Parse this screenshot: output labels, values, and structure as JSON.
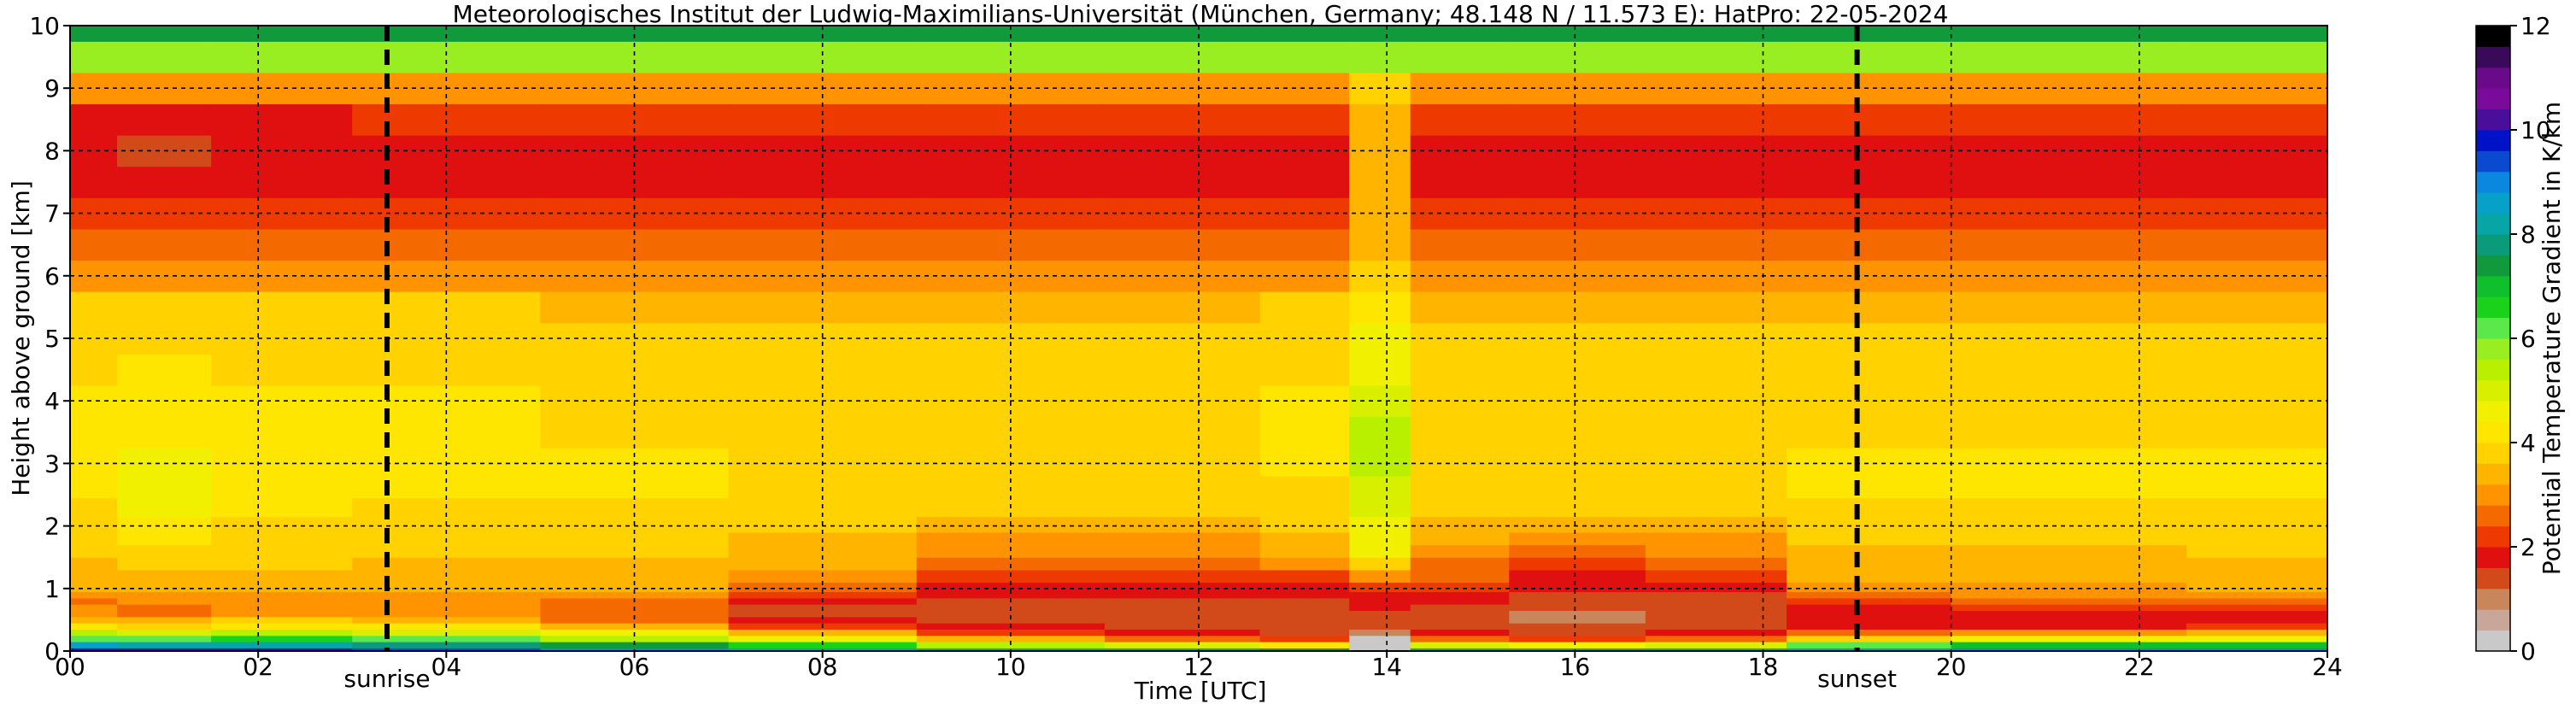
{
  "chart_data": {
    "type": "heatmap",
    "title": "Meteorologisches Institut der Ludwig-Maximilians-Universität (München, Germany; 48.148 N / 11.573 E):    HatPro: 22-05-2024",
    "xlabel": "Time [UTC]",
    "ylabel": "Height above ground [km]",
    "xlim": [
      0,
      24
    ],
    "ylim": [
      0,
      10
    ],
    "x_ticks": [
      "00",
      "02",
      "04",
      "06",
      "08",
      "10",
      "12",
      "14",
      "16",
      "18",
      "20",
      "22",
      "24"
    ],
    "y_ticks": [
      "0",
      "1",
      "2",
      "3",
      "4",
      "5",
      "6",
      "7",
      "8",
      "9",
      "10"
    ],
    "grid": true,
    "annotations": [
      {
        "label": "sunrise",
        "x": 3.37
      },
      {
        "label": "sunset",
        "x": 19.0
      }
    ],
    "colorbar": {
      "label": "Potential Temperature Gradient in K/km",
      "range": [
        0,
        12
      ],
      "ticks": [
        "0",
        "2",
        "4",
        "6",
        "8",
        "10",
        "12"
      ],
      "colors": [
        "#c9c9c9",
        "#c8a79a",
        "#c9865b",
        "#d24a1a",
        "#e01010",
        "#ee3a00",
        "#f46a00",
        "#ff9400",
        "#ffb400",
        "#ffd200",
        "#ffe600",
        "#f0f000",
        "#d8f000",
        "#b8f000",
        "#98ee20",
        "#5ae84a",
        "#19d219",
        "#0fbf2c",
        "#109a3c",
        "#0a9c7a",
        "#07a5a5",
        "#06a0c8",
        "#0a88e0",
        "#0a4ad0",
        "#0012c8",
        "#4a0f9a",
        "#7a0a9a",
        "#6a0a8a",
        "#3a0a5a",
        "#000000"
      ]
    },
    "height_km": [
      0,
      0.1,
      0.2,
      0.3,
      0.4,
      0.5,
      0.6,
      0.7,
      0.8,
      0.9,
      1.0,
      1.2,
      1.4,
      1.6,
      1.8,
      2.0,
      2.3,
      2.6,
      3.0,
      3.5,
      4.0,
      4.5,
      5.0,
      5.5,
      6.0,
      6.5,
      7.0,
      7.5,
      8.0,
      8.5,
      9.0,
      9.5,
      10.0
    ],
    "profiles": [
      {
        "time": 0.0,
        "values": [
          10.2,
          8.5,
          6.2,
          5.4,
          4.2,
          3.4,
          3.0,
          2.9,
          2.8,
          3.0,
          3.2,
          3.4,
          3.5,
          3.6,
          3.6,
          3.8,
          3.9,
          4.0,
          4.1,
          4.0,
          4.0,
          3.9,
          3.8,
          3.6,
          3.0,
          2.6,
          2.4,
          1.8,
          1.7,
          1.9,
          3.0,
          5.8,
          7.5
        ]
      },
      {
        "time": 1.0,
        "values": [
          10.0,
          8.2,
          6.0,
          5.0,
          3.6,
          3.2,
          2.7,
          2.7,
          2.9,
          3.0,
          3.3,
          3.5,
          3.8,
          3.9,
          4.0,
          4.2,
          4.4,
          4.5,
          4.5,
          4.3,
          4.2,
          4.0,
          3.8,
          3.6,
          3.0,
          2.6,
          2.3,
          1.7,
          1.4,
          1.6,
          3.0,
          5.8,
          7.5
        ]
      },
      {
        "time": 2.0,
        "values": [
          10.0,
          8.2,
          6.4,
          5.4,
          4.3,
          3.6,
          3.1,
          3.0,
          3.0,
          3.1,
          3.3,
          3.5,
          3.6,
          3.7,
          3.7,
          3.9,
          4.0,
          4.1,
          4.1,
          4.0,
          4.0,
          3.9,
          3.8,
          3.6,
          3.0,
          2.6,
          2.4,
          1.8,
          1.7,
          1.9,
          3.0,
          5.8,
          7.5
        ]
      },
      {
        "time": 4.0,
        "values": [
          9.5,
          7.8,
          6.0,
          5.0,
          4.0,
          3.4,
          3.0,
          2.9,
          2.9,
          3.0,
          3.2,
          3.4,
          3.5,
          3.6,
          3.6,
          3.8,
          3.9,
          4.0,
          4.0,
          4.0,
          4.0,
          3.9,
          3.8,
          3.6,
          3.0,
          2.6,
          2.4,
          1.8,
          1.8,
          2.0,
          3.0,
          5.8,
          7.5
        ]
      },
      {
        "time": 6.0,
        "values": [
          9.0,
          7.5,
          5.6,
          4.4,
          3.2,
          2.8,
          2.5,
          2.6,
          2.8,
          3.0,
          3.2,
          3.4,
          3.5,
          3.6,
          3.6,
          3.8,
          3.9,
          4.0,
          4.0,
          3.9,
          3.9,
          3.8,
          3.7,
          3.5,
          3.0,
          2.6,
          2.4,
          1.8,
          1.8,
          2.0,
          3.0,
          5.8,
          7.5
        ]
      },
      {
        "time": 8.0,
        "values": [
          8.5,
          6.5,
          4.5,
          3.2,
          2.2,
          1.7,
          1.5,
          1.5,
          1.8,
          2.2,
          2.6,
          3.0,
          3.2,
          3.3,
          3.4,
          3.6,
          3.7,
          3.8,
          3.9,
          3.9,
          3.9,
          3.8,
          3.7,
          3.5,
          3.0,
          2.6,
          2.4,
          1.9,
          1.9,
          2.1,
          3.0,
          5.8,
          7.5
        ]
      },
      {
        "time": 10.0,
        "values": [
          8.0,
          5.5,
          3.2,
          2.0,
          1.6,
          1.4,
          1.4,
          1.4,
          1.5,
          1.6,
          1.8,
          2.2,
          2.6,
          2.9,
          3.1,
          3.4,
          3.6,
          3.7,
          3.8,
          3.9,
          3.9,
          3.8,
          3.7,
          3.5,
          3.0,
          2.6,
          2.4,
          1.9,
          1.9,
          2.1,
          3.0,
          5.8,
          7.5
        ]
      },
      {
        "time": 12.0,
        "values": [
          8.0,
          5.0,
          2.5,
          1.6,
          1.4,
          1.3,
          1.3,
          1.4,
          1.5,
          1.6,
          1.8,
          2.2,
          2.6,
          2.9,
          3.1,
          3.4,
          3.6,
          3.7,
          3.8,
          3.9,
          3.9,
          3.8,
          3.7,
          3.5,
          3.0,
          2.6,
          2.4,
          1.9,
          1.9,
          2.1,
          3.0,
          5.8,
          7.5
        ]
      },
      {
        "time": 13.3,
        "values": [
          7.5,
          4.0,
          2.0,
          1.4,
          1.3,
          1.3,
          1.3,
          1.3,
          1.4,
          1.6,
          1.8,
          2.4,
          2.9,
          3.2,
          3.4,
          3.6,
          3.8,
          3.9,
          4.0,
          4.0,
          4.0,
          3.9,
          3.8,
          3.6,
          3.0,
          2.6,
          2.4,
          1.9,
          1.9,
          2.1,
          3.0,
          5.8,
          7.5
        ]
      },
      {
        "time": 13.9,
        "values": [
          0.0,
          0.0,
          0.2,
          1.2,
          1.3,
          1.4,
          1.5,
          1.6,
          1.7,
          1.9,
          2.3,
          2.9,
          3.6,
          4.4,
          4.6,
          4.8,
          5.0,
          5.1,
          5.2,
          5.2,
          5.0,
          4.7,
          4.4,
          4.2,
          3.8,
          3.4,
          3.3,
          3.2,
          3.2,
          3.2,
          3.8,
          5.8,
          7.5
        ]
      },
      {
        "time": 14.6,
        "values": [
          8.0,
          5.0,
          2.5,
          1.6,
          1.4,
          1.4,
          1.4,
          1.5,
          1.6,
          1.8,
          2.1,
          2.5,
          2.8,
          3.1,
          3.3,
          3.5,
          3.7,
          3.8,
          3.9,
          3.9,
          3.9,
          3.8,
          3.7,
          3.5,
          3.0,
          2.6,
          2.4,
          1.9,
          1.9,
          2.1,
          3.0,
          5.8,
          7.5
        ]
      },
      {
        "time": 16.0,
        "values": [
          8.2,
          4.8,
          2.4,
          1.5,
          1.3,
          1.2,
          1.2,
          1.3,
          1.4,
          1.5,
          1.6,
          1.9,
          2.4,
          2.8,
          3.1,
          3.4,
          3.6,
          3.7,
          3.8,
          3.9,
          3.9,
          3.8,
          3.7,
          3.5,
          3.0,
          2.6,
          2.4,
          1.9,
          1.9,
          2.1,
          3.0,
          5.8,
          7.5
        ]
      },
      {
        "time": 17.5,
        "values": [
          8.2,
          5.0,
          2.6,
          1.6,
          1.4,
          1.3,
          1.3,
          1.3,
          1.4,
          1.5,
          1.7,
          2.1,
          2.5,
          2.9,
          3.1,
          3.4,
          3.6,
          3.7,
          3.8,
          3.9,
          3.9,
          3.8,
          3.7,
          3.5,
          3.0,
          2.6,
          2.4,
          1.9,
          1.9,
          2.1,
          3.0,
          5.8,
          7.5
        ]
      },
      {
        "time": 19.0,
        "values": [
          8.5,
          6.0,
          3.8,
          2.6,
          1.8,
          1.6,
          1.6,
          1.8,
          2.2,
          2.6,
          3.0,
          3.3,
          3.4,
          3.5,
          3.6,
          3.8,
          3.9,
          4.0,
          4.0,
          3.9,
          3.9,
          3.8,
          3.7,
          3.5,
          3.0,
          2.6,
          2.4,
          1.9,
          1.9,
          2.1,
          3.0,
          5.8,
          7.5
        ]
      },
      {
        "time": 21.0,
        "values": [
          9.0,
          6.8,
          4.6,
          3.0,
          1.9,
          1.6,
          1.7,
          2.1,
          2.6,
          2.9,
          3.1,
          3.3,
          3.4,
          3.5,
          3.6,
          3.8,
          3.9,
          4.0,
          4.0,
          3.9,
          3.9,
          3.8,
          3.7,
          3.5,
          3.0,
          2.6,
          2.4,
          1.9,
          1.9,
          2.1,
          3.0,
          5.8,
          7.5
        ]
      },
      {
        "time": 24.0,
        "values": [
          9.0,
          7.0,
          4.8,
          3.2,
          2.0,
          1.7,
          1.8,
          2.2,
          2.7,
          3.0,
          3.2,
          3.4,
          3.5,
          3.6,
          3.6,
          3.8,
          3.9,
          4.0,
          4.0,
          3.9,
          3.9,
          3.8,
          3.7,
          3.5,
          3.0,
          2.6,
          2.4,
          1.9,
          1.9,
          2.1,
          3.0,
          5.8,
          7.5
        ]
      }
    ]
  }
}
